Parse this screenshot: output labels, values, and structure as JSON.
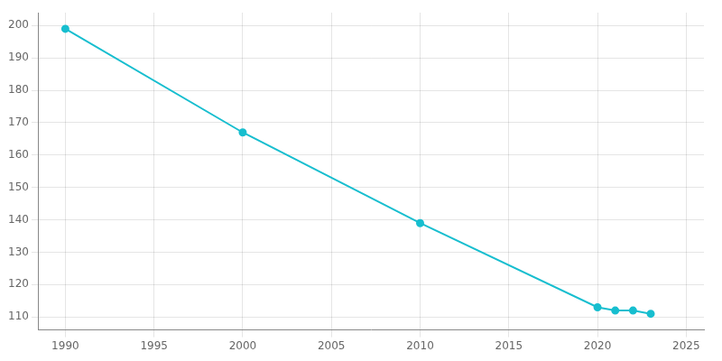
{
  "chart_data": {
    "type": "line",
    "x": [
      1990,
      2000,
      2010,
      2020,
      2021,
      2022,
      2023
    ],
    "values": [
      199,
      167,
      139,
      113,
      112,
      112,
      111
    ],
    "color": "#17becf",
    "marker": "circle",
    "xlim": [
      1988.5,
      2026
    ],
    "ylim": [
      106,
      204
    ],
    "xticks": [
      1990,
      1995,
      2000,
      2005,
      2010,
      2015,
      2020,
      2025
    ],
    "yticks": [
      110,
      120,
      130,
      140,
      150,
      160,
      170,
      180,
      190,
      200
    ],
    "grid": true
  }
}
